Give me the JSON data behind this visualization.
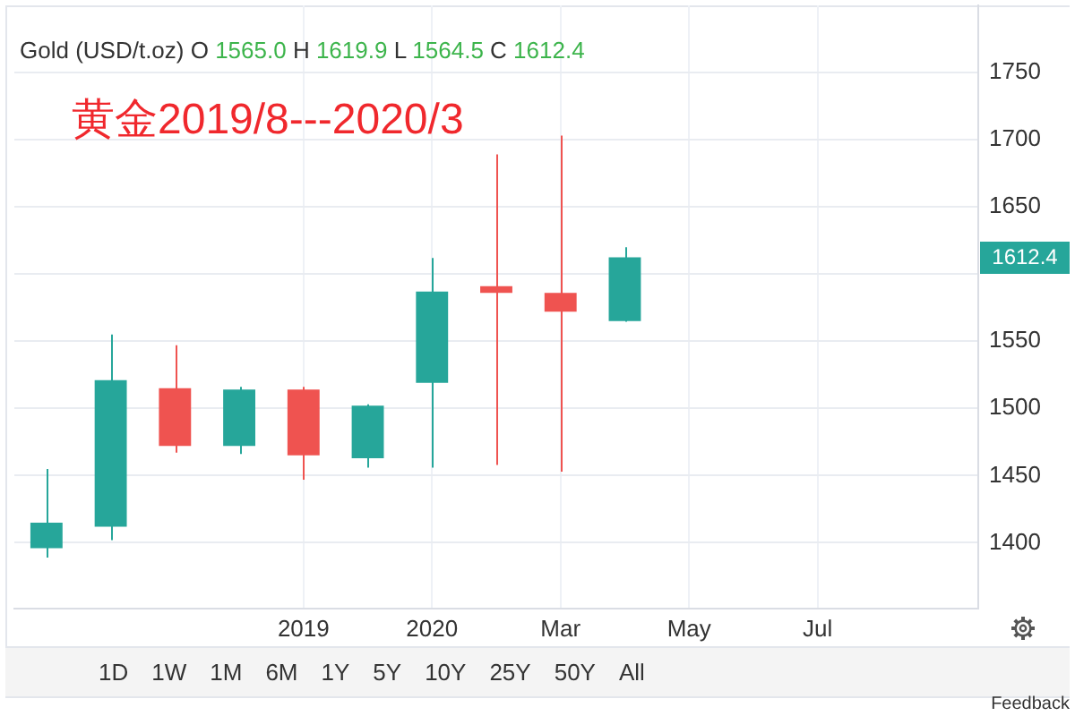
{
  "chart_data": {
    "type": "candlestick",
    "title": "Gold (USD/t.oz) O 1565.0 H 1619.9 L 1564.5 C 1612.4",
    "categories": [
      null,
      null,
      null,
      null,
      "2019",
      null,
      "2020",
      null,
      "Mar",
      null,
      "May",
      null,
      "Jul",
      null,
      null
    ],
    "ohlc": [
      [
        1396,
        1455,
        1389,
        1415
      ],
      [
        1412,
        1555,
        1402,
        1521
      ],
      [
        1515,
        1547,
        1467,
        1472
      ],
      [
        1472,
        1516,
        1466,
        1514
      ],
      [
        1514,
        1516,
        1447,
        1465
      ],
      [
        1463,
        1503,
        1456,
        1502
      ],
      [
        1519,
        1612,
        1456,
        1587
      ],
      [
        1591,
        1689,
        1458,
        1586
      ],
      [
        1586,
        1703,
        1453,
        1572
      ],
      [
        1565.0,
        1619.9,
        1564.5,
        1612.4
      ],
      null,
      null,
      null,
      null,
      null
    ],
    "colors": [
      "#26a69a",
      "#26a69a",
      "#ef5350",
      "#26a69a",
      "#ef5350",
      "#26a69a",
      "#26a69a",
      "#ef5350",
      "#ef5350",
      "#26a69a",
      null,
      null,
      null,
      null,
      null
    ],
    "ylim": [
      1351,
      1800
    ],
    "yticks": [
      1400,
      1450,
      1500,
      1550,
      {
        "value": 1600,
        "label": null
      },
      1650,
      1700,
      1750
    ],
    "grid": true,
    "annotations": [
      "黄金2019/8---2020/3",
      "1612.4",
      "1D",
      "1W",
      "1M",
      "6M",
      "1Y",
      "5Y",
      "10Y",
      "25Y",
      "50Y",
      "All",
      "Feedback"
    ]
  }
}
